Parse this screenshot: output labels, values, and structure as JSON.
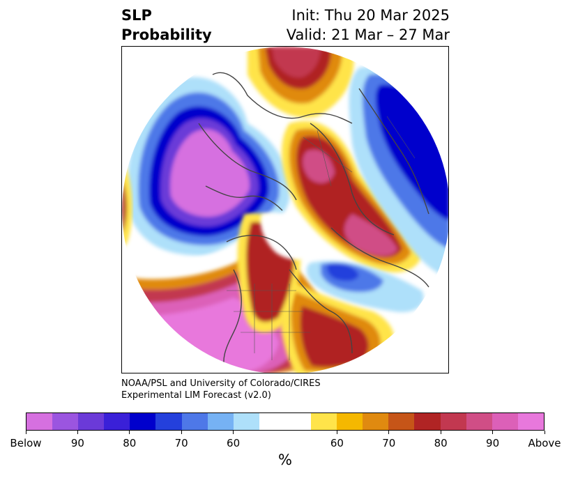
{
  "title": {
    "left_line1": "SLP",
    "left_line2": "Probability",
    "right_line1": "Init: Thu 20 Mar 2025",
    "right_line2": "Valid: 21 Mar – 27 Mar"
  },
  "credit": {
    "line1": "NOAA/PSL and University of Colorado/CIRES",
    "line2": "Experimental LIM Forecast (v2.0)"
  },
  "colorbar": {
    "colors": [
      "#d670e0",
      "#9b55e0",
      "#6b3ad8",
      "#3a20d8",
      "#0000cc",
      "#2440dc",
      "#4e78e8",
      "#76b2f4",
      "#aee0fa",
      "#ffffff",
      "#ffffff",
      "#ffe44a",
      "#f5b800",
      "#e08a10",
      "#c65518",
      "#b02424",
      "#c23850",
      "#d04e86",
      "#dc60b8",
      "#e878dc"
    ],
    "tick_labels": [
      "Below",
      "90",
      "80",
      "70",
      "60",
      "60",
      "70",
      "80",
      "90",
      "Above"
    ],
    "unit": "%"
  },
  "map": {
    "projection": "north-polar-stereographic",
    "colors": {
      "below_strong": "#d670e0",
      "below_mid": "#6b3ad8",
      "below_deep": "#0000cc",
      "below_light": "#aee0fa",
      "above_light": "#ffe44a",
      "above_mid": "#e08a10",
      "above_strong": "#b02424",
      "above_max": "#d04e86",
      "coastline": "#444444"
    }
  }
}
